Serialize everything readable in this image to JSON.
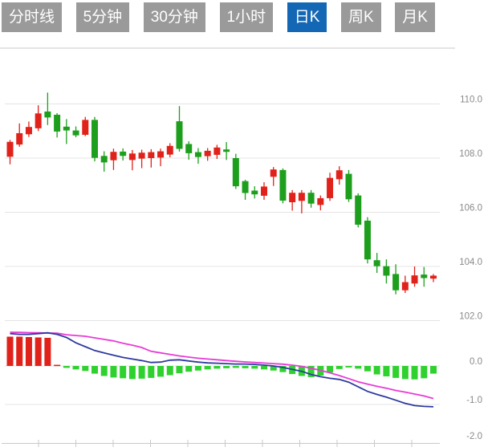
{
  "tabs": {
    "items": [
      {
        "label": "分时线",
        "active": false
      },
      {
        "label": "5分钟",
        "active": false
      },
      {
        "label": "30分钟",
        "active": false
      },
      {
        "label": "1小时",
        "active": false
      },
      {
        "label": "日K",
        "active": true
      },
      {
        "label": "周K",
        "active": false
      },
      {
        "label": "月K",
        "active": false
      }
    ],
    "active_bg": "#1467b4",
    "inactive_bg": "#9a9a9a",
    "text_color": "#ffffff"
  },
  "chart_data": {
    "type": "candlestick",
    "indicator": "macd",
    "title": "",
    "legend": "none",
    "grid": "on",
    "price_axis": {
      "side": "right",
      "ticks": [
        110.0,
        108.0,
        106.0,
        104.0,
        102.0
      ],
      "labels": [
        "110.0",
        "108.0",
        "106.0",
        "104.0",
        "102.0"
      ],
      "range_hint": [
        101.8,
        112.0
      ]
    },
    "indicator_axis": {
      "side": "right",
      "ticks": [
        0.0,
        -1.0,
        -2.0
      ],
      "labels": [
        "0.0",
        "-1.0",
        "-2.0"
      ],
      "range_hint": [
        1.05,
        -2.0
      ]
    },
    "candle_format": [
      "open",
      "high",
      "low",
      "close"
    ],
    "candles": [
      [
        108.05,
        108.67,
        107.77,
        108.6
      ],
      [
        108.5,
        109.28,
        108.42,
        108.92
      ],
      [
        108.88,
        109.35,
        108.78,
        109.15
      ],
      [
        109.1,
        109.95,
        109.0,
        109.65
      ],
      [
        109.72,
        110.42,
        109.22,
        109.5
      ],
      [
        109.6,
        109.66,
        108.76,
        108.98
      ],
      [
        109.16,
        109.44,
        108.52,
        109.02
      ],
      [
        109.02,
        109.17,
        108.77,
        108.84
      ],
      [
        108.86,
        109.52,
        108.81,
        109.41
      ],
      [
        109.41,
        109.52,
        107.88,
        108.01
      ],
      [
        108.08,
        108.25,
        107.5,
        107.84
      ],
      [
        107.92,
        108.35,
        107.56,
        108.23
      ],
      [
        108.24,
        108.36,
        107.91,
        108.08
      ],
      [
        107.93,
        108.3,
        107.55,
        108.17
      ],
      [
        107.98,
        108.31,
        107.63,
        108.2
      ],
      [
        108.0,
        108.33,
        107.65,
        108.22
      ],
      [
        108.02,
        108.35,
        107.7,
        108.25
      ],
      [
        108.13,
        108.55,
        108.03,
        108.45
      ],
      [
        109.36,
        109.92,
        108.24,
        108.34
      ],
      [
        108.52,
        108.62,
        107.94,
        108.18
      ],
      [
        108.22,
        108.37,
        107.79,
        108.04
      ],
      [
        108.07,
        108.37,
        107.9,
        108.27
      ],
      [
        108.12,
        108.49,
        107.97,
        108.39
      ],
      [
        108.32,
        108.59,
        107.93,
        108.23
      ],
      [
        108.0,
        108.16,
        106.86,
        106.96
      ],
      [
        107.15,
        107.2,
        106.46,
        106.71
      ],
      [
        106.8,
        106.96,
        106.51,
        106.66
      ],
      [
        106.61,
        107.11,
        106.46,
        106.95
      ],
      [
        107.31,
        107.67,
        106.97,
        107.58
      ],
      [
        107.56,
        107.62,
        106.33,
        106.43
      ],
      [
        106.37,
        106.82,
        106.06,
        106.72
      ],
      [
        106.42,
        106.82,
        105.96,
        106.72
      ],
      [
        106.72,
        106.82,
        106.17,
        106.32
      ],
      [
        106.27,
        106.62,
        106.07,
        106.52
      ],
      [
        106.52,
        107.46,
        106.42,
        107.27
      ],
      [
        107.22,
        107.7,
        107.02,
        107.55
      ],
      [
        107.42,
        107.56,
        106.38,
        106.48
      ],
      [
        106.62,
        106.7,
        105.44,
        105.54
      ],
      [
        105.69,
        105.82,
        104.11,
        104.26
      ],
      [
        104.23,
        104.5,
        103.76,
        104.01
      ],
      [
        104.01,
        104.26,
        103.37,
        103.66
      ],
      [
        103.72,
        104.08,
        102.97,
        103.12
      ],
      [
        103.12,
        103.66,
        103.02,
        103.42
      ],
      [
        103.37,
        104.0,
        103.25,
        103.67
      ],
      [
        103.7,
        103.98,
        103.25,
        103.57
      ],
      [
        103.55,
        103.72,
        103.42,
        103.66
      ]
    ],
    "macd": {
      "histogram": [
        0.76,
        0.76,
        0.75,
        0.74,
        0.73,
        0.03,
        -0.05,
        -0.09,
        -0.13,
        -0.2,
        -0.26,
        -0.3,
        -0.32,
        -0.34,
        -0.33,
        -0.31,
        -0.28,
        -0.24,
        -0.19,
        -0.15,
        -0.12,
        -0.09,
        -0.07,
        -0.06,
        -0.05,
        -0.06,
        -0.07,
        -0.09,
        -0.12,
        -0.16,
        -0.21,
        -0.26,
        -0.29,
        -0.25,
        -0.17,
        -0.08,
        -0.04,
        -0.07,
        -0.14,
        -0.22,
        -0.27,
        -0.31,
        -0.34,
        -0.35,
        -0.32,
        -0.2
      ],
      "dif": [
        0.84,
        0.82,
        0.82,
        0.84,
        0.86,
        0.82,
        0.74,
        0.6,
        0.5,
        0.4,
        0.34,
        0.28,
        0.22,
        0.18,
        0.14,
        0.09,
        0.1,
        0.15,
        0.16,
        0.13,
        0.1,
        0.08,
        0.07,
        0.06,
        0.05,
        0.05,
        0.04,
        0.02,
        0.0,
        -0.04,
        -0.09,
        -0.14,
        -0.22,
        -0.28,
        -0.32,
        -0.35,
        -0.42,
        -0.54,
        -0.66,
        -0.74,
        -0.81,
        -0.89,
        -0.97,
        -1.03,
        -1.05,
        -1.06
      ],
      "dea": [
        0.875,
        0.87,
        0.865,
        0.86,
        0.855,
        0.85,
        0.81,
        0.79,
        0.77,
        0.73,
        0.69,
        0.65,
        0.59,
        0.54,
        0.48,
        0.38,
        0.34,
        0.3,
        0.26,
        0.23,
        0.2,
        0.18,
        0.16,
        0.14,
        0.12,
        0.105,
        0.09,
        0.075,
        0.06,
        0.045,
        0.02,
        -0.01,
        -0.06,
        -0.115,
        -0.18,
        -0.25,
        -0.33,
        -0.41,
        -0.47,
        -0.53,
        -0.58,
        -0.635,
        -0.68,
        -0.73,
        -0.78,
        -0.845
      ]
    },
    "colors": {
      "up": "#e1221b",
      "down": "#1d9f1d",
      "hist_up": "#e1221b",
      "hist_down": "#2fd12f",
      "dif_line": "#2e3a9f",
      "dea_line": "#e83bd7",
      "grid": "#e4e4e4",
      "axis_line": "#c9c9c9",
      "axis_text": "#8a8a8a"
    }
  }
}
